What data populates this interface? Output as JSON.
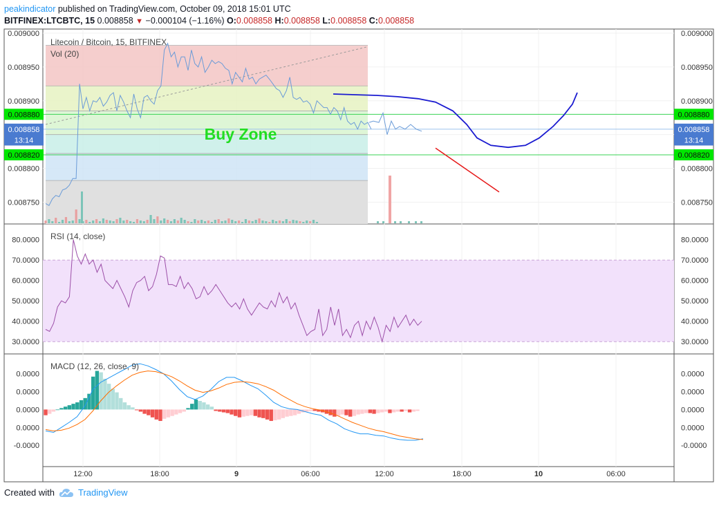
{
  "header": {
    "author": "peakindicator",
    "published": " published on TradingView.com, October 09, 2018 15:01 UTC",
    "symbol": "BITFINEX:LTCBTC, 15",
    "last": "0.008858",
    "change": "−0.000104 (−1.16%)",
    "o_label": "O:",
    "o_value": "0.008858",
    "h_label": "H:",
    "h_value": "0.008858",
    "l_label": "L:",
    "l_value": "0.008858",
    "c_label": "C:",
    "c_value": "0.008858"
  },
  "footer": {
    "created": "Created with",
    "brand": "TradingView"
  },
  "colors": {
    "accent": "#2196f3",
    "green_label": "#00e600",
    "buy_zone": "#22dd22",
    "price_line": "#6a9bd8",
    "projection": "#1a1ad0",
    "down_line": "#e61919",
    "rsi": "#9c4fa8",
    "macd": "#2196f3",
    "signal": "#ff6d00"
  },
  "chart_data": [
    {
      "type": "line",
      "title": "Litecoin / Bitcoin, 15, BITFINEX",
      "volume_label": "Vol (20)",
      "annotation": "Buy Zone",
      "ylim": [
        0.00873,
        0.009
      ],
      "y_ticks": [
        "0.009000",
        "0.008950",
        "0.008900",
        "0.008850",
        "0.008800",
        "0.008750"
      ],
      "y_tick_values": [
        0.009,
        0.00895,
        0.0089,
        0.00885,
        0.0088,
        0.00875
      ],
      "x_ticks": [
        "12:00",
        "18:00",
        "9",
        "06:00",
        "12:00",
        "18:00",
        "10",
        "06:00"
      ],
      "price_labels": [
        {
          "text": "0.008880",
          "value": 0.00888,
          "color": "#00e600"
        },
        {
          "text": "0.008858",
          "value": 0.008858,
          "color": "#4a7bd0"
        },
        {
          "text": "13:14",
          "value": 0.008842,
          "color": "#4a7bd0"
        },
        {
          "text": "0.008820",
          "value": 0.00882,
          "color": "#00e600"
        }
      ],
      "fib_levels": [
        0.008982,
        0.008922,
        0.008885,
        0.00885,
        0.008822,
        0.008782
      ],
      "series": [
        {
          "values": [
            0.008748,
            0.008745,
            0.008755,
            0.00876,
            0.008758,
            0.008768,
            0.00877,
            0.008775,
            0.008785,
            0.008785,
            0.008925,
            0.008888,
            0.008905,
            0.008885,
            0.0089,
            0.008898,
            0.008905,
            0.008892,
            0.008898,
            0.008908,
            0.008912,
            0.008885,
            0.008908,
            0.008898,
            0.008885,
            0.008875,
            0.00891,
            0.008888,
            0.008875,
            0.008905,
            0.008908,
            0.0089,
            0.008895,
            0.008915,
            0.008922,
            0.008975,
            0.008985,
            0.008965,
            0.008972,
            0.00895,
            0.008965,
            0.008965,
            0.008945,
            0.008975,
            0.008955,
            0.00895,
            0.008965,
            0.008942,
            0.00895,
            0.00896,
            0.008955,
            0.008958,
            0.008955,
            0.008948,
            0.008945,
            0.008925,
            0.008942,
            0.008935,
            0.008928,
            0.008948,
            0.008932,
            0.008935,
            0.008925,
            0.008932,
            0.008935,
            0.008938,
            0.008932,
            0.008925,
            0.008918,
            0.008915,
            0.008905,
            0.008915,
            0.008935,
            0.008905,
            0.008902,
            0.008905,
            0.008898,
            0.0089,
            0.008895,
            0.008882,
            0.0089,
            0.008895,
            0.00889,
            0.00889,
            0.00888,
            0.00889,
            0.008885,
            0.008872,
            0.00889,
            0.00887,
            0.008865,
            0.008868,
            0.008858,
            0.00887,
            0.008865,
            0.008868,
            0.008858
          ]
        },
        {
          "name": "",
          "values": [
            0.00891,
            0.008909,
            0.008908,
            0.008906,
            0.008903,
            0.008898,
            0.008885,
            0.008865,
            0.008845,
            0.008834,
            0.008831,
            0.008834,
            0.008845,
            0.008862,
            0.008878,
            0.008895,
            0.008912
          ]
        }
      ]
    },
    {
      "type": "line",
      "title": "RSI (14, close)",
      "ylim": [
        26,
        85
      ],
      "y_ticks": [
        "80.0000",
        "70.0000",
        "60.0000",
        "50.0000",
        "40.0000",
        "30.0000"
      ],
      "y_tick_values": [
        80,
        70,
        60,
        50,
        40,
        30
      ],
      "band": [
        30,
        70
      ],
      "series": [
        {
          "values": [
            36,
            35,
            39,
            47,
            50,
            49,
            52,
            80,
            72,
            68,
            73,
            68,
            70,
            64,
            68,
            60,
            58,
            56,
            60,
            56,
            52,
            47,
            55,
            59,
            60,
            62,
            55,
            57,
            63,
            72,
            71,
            58,
            58,
            57,
            62,
            56,
            59,
            56,
            51,
            52,
            57,
            53,
            55,
            58,
            55,
            52,
            49,
            47,
            49,
            46,
            51,
            46,
            43,
            46,
            49,
            47,
            46,
            50,
            47,
            54,
            49,
            52,
            46,
            49,
            43,
            38,
            33,
            35,
            36,
            46,
            33,
            36,
            47,
            38,
            46,
            33,
            36,
            32,
            38,
            40,
            33,
            40,
            36,
            42,
            37,
            30,
            38,
            35,
            42,
            37,
            40,
            43,
            38,
            41,
            38,
            40
          ]
        }
      ]
    },
    {
      "type": "bar",
      "title": "MACD (12, 26, close, 9)",
      "y_ticks": [
        "0.0000",
        "0.0000",
        "0.0000",
        "0.0000",
        "-0.0000"
      ],
      "y_tick_values": [
        5,
        2.5,
        0,
        -2.5,
        -5
      ],
      "ylim": [
        -7.5,
        7
      ],
      "series": [
        {
          "name": "histogram",
          "values": [
            -0.8,
            -0.6,
            -0.3,
            0,
            0.2,
            0.4,
            0.6,
            0.8,
            1.0,
            1.3,
            1.6,
            2.2,
            4.6,
            5.4,
            5.2,
            4.3,
            3.6,
            2.9,
            2.4,
            1.6,
            1.0,
            0.6,
            0.3,
            -0.1,
            -0.3,
            -0.6,
            -0.8,
            -1.1,
            -1.4,
            -1.6,
            -1.3,
            -1.1,
            -0.9,
            -0.7,
            -0.5,
            -0.3,
            0.2,
            0.8,
            1.4,
            1.2,
            1.0,
            0.7,
            0.4,
            -0.2,
            -0.3,
            -0.4,
            -0.5,
            -0.7,
            -0.9,
            -1.1,
            -1.0,
            -0.9,
            -0.8,
            -0.9,
            -1.1,
            -1.2,
            -1.4,
            -1.6,
            -1.5,
            -1.4,
            -1.2,
            -1.0,
            -0.9,
            -0.8,
            -0.6,
            -0.4,
            -0.3,
            -0.2,
            -0.2,
            -0.3,
            -0.4,
            -0.6,
            -0.8,
            -1.0,
            -0.9,
            -0.7,
            -0.8,
            -1.0,
            -0.9,
            -0.7,
            -0.6,
            -0.5,
            -0.5,
            -0.6,
            -0.5,
            -0.4,
            -0.3,
            -0.5,
            -0.4,
            -0.3,
            -0.3,
            -0.2,
            -0.4,
            -0.3,
            -0.2
          ]
        },
        {
          "name": "macd",
          "values": [
            -3,
            -3.2,
            -2.5,
            -1.8,
            -1.0,
            0.5,
            2.8,
            3.8,
            4.4,
            5.0,
            5.6,
            6.2,
            6.4,
            6.1,
            5.6,
            5.0,
            4.0,
            2.8,
            1.8,
            1.4,
            1.9,
            2.8,
            3.9,
            4.5,
            4.5,
            4.0,
            3.4,
            2.9,
            2.0,
            1.0,
            0.4,
            0.1,
            0,
            -0.3,
            -0.6,
            -0.8,
            -1.5,
            -2.0,
            -2.7,
            -3.1,
            -3.4,
            -3.4,
            -3.6,
            -3.7,
            -4.0,
            -4.2,
            -4.3,
            -4.3,
            -4.1
          ]
        },
        {
          "name": "signal",
          "values": [
            -2.8,
            -3.0,
            -2.9,
            -2.6,
            -2.1,
            -1.4,
            -0.2,
            1.2,
            2.4,
            3.3,
            4.1,
            4.8,
            5.2,
            5.4,
            5.3,
            5.0,
            4.6,
            4.0,
            3.3,
            2.7,
            2.4,
            2.6,
            3.0,
            3.5,
            3.8,
            3.9,
            3.8,
            3.6,
            3.2,
            2.7,
            2.0,
            1.4,
            0.8,
            0.4,
            0.1,
            -0.1,
            -0.4,
            -0.8,
            -1.3,
            -1.8,
            -2.2,
            -2.6,
            -2.9,
            -3.1,
            -3.4,
            -3.7,
            -3.9,
            -4.1,
            -4.2
          ]
        }
      ]
    }
  ]
}
